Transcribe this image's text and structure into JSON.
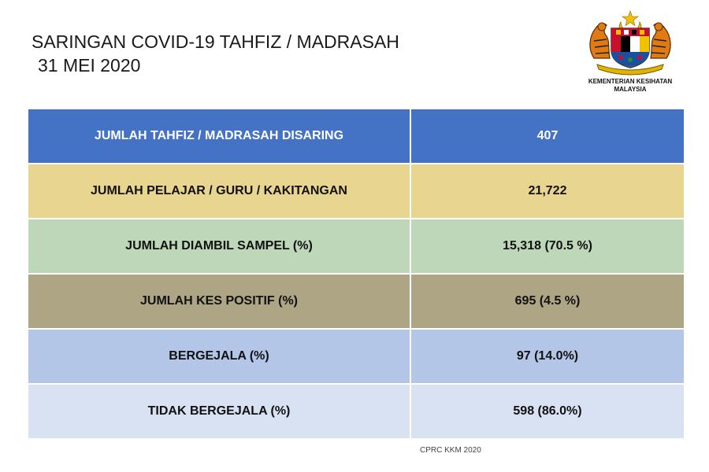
{
  "title": {
    "line1": "SARINGAN COVID-19 TAHFIZ / MADRASAH",
    "line2": "31 MEI 2020"
  },
  "logo": {
    "org_line1": "KEMENTERIAN KESIHATAN",
    "org_line2": "MALAYSIA",
    "icon": "malaysia-coat-of-arms"
  },
  "table": {
    "rows": [
      {
        "label": "JUMLAH TAHFIZ / MADRASAH DISARING",
        "value": "407",
        "color": "#4472c4"
      },
      {
        "label": "JUMLAH PELAJAR / GURU / KAKITANGAN",
        "value": "21,722",
        "color": "#e8d590"
      },
      {
        "label": "JUMLAH DIAMBIL SAMPEL (%)",
        "value": "15,318  (70.5 %)",
        "color": "#bdd7b8"
      },
      {
        "label": "JUMLAH KES POSITIF (%)",
        "value": "695 (4.5 %)",
        "color": "#ada584"
      },
      {
        "label": "BERGEJALA (%)",
        "value": "97 (14.0%)",
        "color": "#b4c6e7"
      },
      {
        "label": "TIDAK BERGEJALA (%)",
        "value": "598 (86.0%)",
        "color": "#d9e2f3"
      }
    ]
  },
  "footer": "CPRC KKM 2020"
}
